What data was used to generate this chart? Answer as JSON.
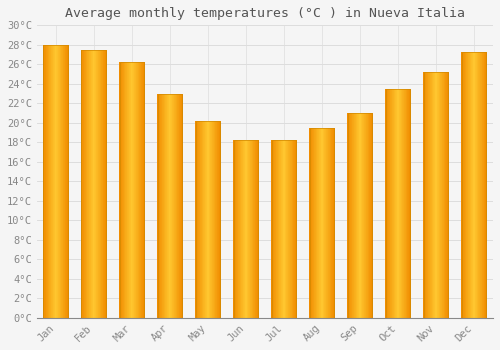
{
  "title": "Average monthly temperatures (°C ) in Nueva Italia",
  "months": [
    "Jan",
    "Feb",
    "Mar",
    "Apr",
    "May",
    "Jun",
    "Jul",
    "Aug",
    "Sep",
    "Oct",
    "Nov",
    "Dec"
  ],
  "values": [
    28.0,
    27.5,
    26.2,
    23.0,
    20.2,
    18.2,
    18.2,
    19.5,
    21.0,
    23.5,
    25.2,
    27.3
  ],
  "bar_color_center": "#FFB732",
  "bar_color_edge": "#F59500",
  "ylim": [
    0,
    30
  ],
  "ytick_step": 2,
  "background_color": "#f5f5f5",
  "plot_bg_color": "#f5f5f5",
  "grid_color": "#dddddd",
  "title_fontsize": 9.5,
  "tick_fontsize": 7.5,
  "tick_label_color": "#888888",
  "title_color": "#555555",
  "bar_width": 0.65
}
